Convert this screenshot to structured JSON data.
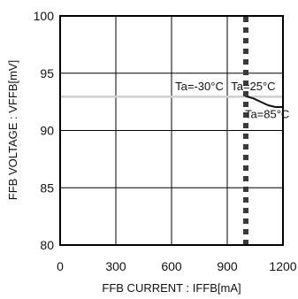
{
  "chart_data": {
    "type": "line",
    "xlabel": "FFB CURRENT : IFFB[mA]",
    "ylabel": "FFB VOLTAGE : VFFB[mV]",
    "xlim": [
      0,
      1200
    ],
    "ylim": [
      80,
      100
    ],
    "xticks": [
      0,
      300,
      600,
      900,
      1200
    ],
    "yticks": [
      80,
      85,
      90,
      95,
      100
    ],
    "x_tick_labels": [
      "0",
      "300",
      "600",
      "900",
      "1200"
    ],
    "y_tick_labels": [
      "80",
      "85",
      "90",
      "95",
      "100"
    ],
    "grid": true,
    "legend": "none",
    "series": [
      {
        "name": "Ta=-30°C",
        "style": "solid",
        "color": "#d0d0d0",
        "points": [
          [
            0,
            93
          ],
          [
            1200,
            93
          ]
        ]
      },
      {
        "name": "Ta=25°C",
        "style": "solid",
        "color": "#d0d0d0",
        "points": [
          [
            0,
            92.9
          ],
          [
            1200,
            92.9
          ]
        ]
      },
      {
        "name": "Ta=85°C",
        "style": "solid",
        "color": "#111111",
        "points": [
          [
            1000,
            93
          ],
          [
            1040,
            92.8
          ],
          [
            1080,
            92.5
          ],
          [
            1120,
            92.2
          ],
          [
            1160,
            92.05
          ],
          [
            1200,
            92.05
          ]
        ]
      }
    ],
    "limit_line": {
      "x": 1000,
      "style": "dashed",
      "color": "#3a3a3a"
    },
    "annotations": [
      {
        "text": "Ta=-30°C",
        "x": 750,
        "y": 93.5
      },
      {
        "text": "Ta=25°C",
        "x": 1040,
        "y": 93.5
      },
      {
        "text": "Ta=85°C",
        "x": 1115,
        "y": 91.1
      }
    ]
  }
}
